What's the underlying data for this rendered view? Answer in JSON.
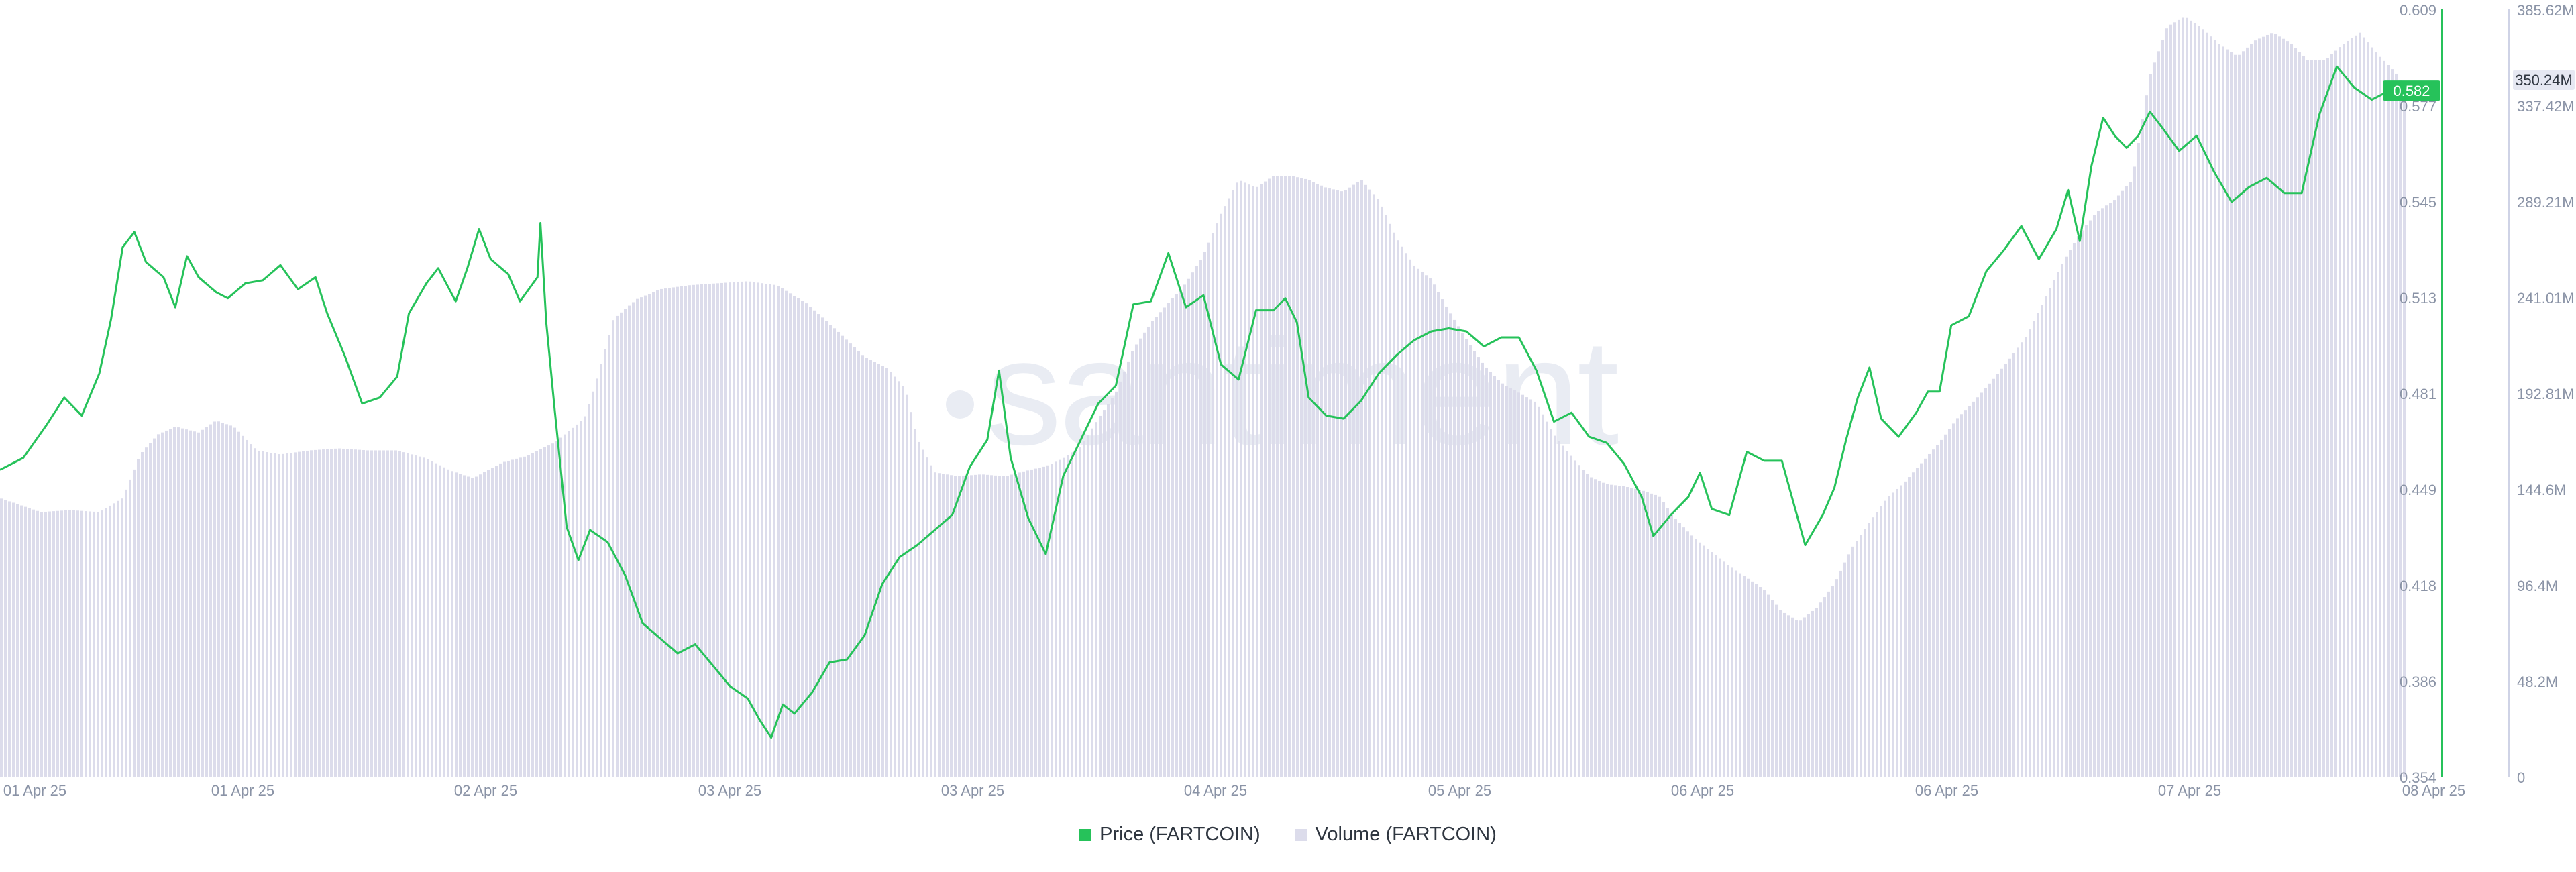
{
  "watermark": "santiment",
  "legend": [
    {
      "label": "Price (FARTCOIN)",
      "color": "#26c25a"
    },
    {
      "label": "Volume (FARTCOIN)",
      "color": "#dcdceb"
    }
  ],
  "chart_data": {
    "type": "line",
    "x_ticks": [
      "01 Apr 25",
      "01 Apr 25",
      "02 Apr 25",
      "03 Apr 25",
      "03 Apr 25",
      "04 Apr 25",
      "05 Apr 25",
      "06 Apr 25",
      "06 Apr 25",
      "07 Apr 25",
      "08 Apr 25"
    ],
    "price_axis": {
      "ticks": [
        "0.609",
        "0.577",
        "0.545",
        "0.513",
        "0.481",
        "0.449",
        "0.418",
        "0.386",
        "0.354"
      ],
      "range": [
        0.354,
        0.609
      ],
      "current_label": "0.582",
      "current_color": "#26c25a"
    },
    "volume_axis": {
      "ticks": [
        "385.62M",
        "337.42M",
        "289.21M",
        "241.01M",
        "192.81M",
        "144.6M",
        "96.4M",
        "48.2M",
        "0"
      ],
      "range_millions": [
        0,
        385.62
      ],
      "current_label": "350.24M"
    },
    "series": [
      {
        "name": "Price (FARTCOIN)",
        "kind": "line",
        "color": "#26c25a",
        "points": [
          [
            0,
            0.456
          ],
          [
            0.4,
            0.46
          ],
          [
            0.8,
            0.471
          ],
          [
            1.1,
            0.48
          ],
          [
            1.4,
            0.474
          ],
          [
            1.7,
            0.488
          ],
          [
            1.9,
            0.506
          ],
          [
            2.1,
            0.53
          ],
          [
            2.3,
            0.535
          ],
          [
            2.5,
            0.525
          ],
          [
            2.8,
            0.52
          ],
          [
            3.0,
            0.51
          ],
          [
            3.2,
            0.527
          ],
          [
            3.4,
            0.52
          ],
          [
            3.7,
            0.515
          ],
          [
            3.9,
            0.513
          ],
          [
            4.2,
            0.518
          ],
          [
            4.5,
            0.519
          ],
          [
            4.8,
            0.524
          ],
          [
            5.1,
            0.516
          ],
          [
            5.4,
            0.52
          ],
          [
            5.6,
            0.508
          ],
          [
            5.9,
            0.494
          ],
          [
            6.2,
            0.478
          ],
          [
            6.5,
            0.48
          ],
          [
            6.8,
            0.487
          ],
          [
            7.0,
            0.508
          ],
          [
            7.3,
            0.518
          ],
          [
            7.5,
            0.523
          ],
          [
            7.8,
            0.512
          ],
          [
            8.0,
            0.523
          ],
          [
            8.2,
            0.536
          ],
          [
            8.4,
            0.526
          ],
          [
            8.7,
            0.521
          ],
          [
            8.9,
            0.512
          ],
          [
            9.2,
            0.52
          ],
          [
            9.25,
            0.538
          ],
          [
            9.35,
            0.505
          ],
          [
            9.5,
            0.475
          ],
          [
            9.7,
            0.437
          ],
          [
            9.9,
            0.426
          ],
          [
            10.1,
            0.436
          ],
          [
            10.4,
            0.432
          ],
          [
            10.7,
            0.421
          ],
          [
            11.0,
            0.405
          ],
          [
            11.3,
            0.4
          ],
          [
            11.6,
            0.395
          ],
          [
            11.9,
            0.398
          ],
          [
            12.2,
            0.391
          ],
          [
            12.5,
            0.384
          ],
          [
            12.8,
            0.38
          ],
          [
            13.0,
            0.373
          ],
          [
            13.2,
            0.367
          ],
          [
            13.4,
            0.378
          ],
          [
            13.6,
            0.375
          ],
          [
            13.9,
            0.382
          ],
          [
            14.2,
            0.392
          ],
          [
            14.5,
            0.393
          ],
          [
            14.8,
            0.401
          ],
          [
            15.1,
            0.418
          ],
          [
            15.4,
            0.427
          ],
          [
            15.7,
            0.431
          ],
          [
            16.0,
            0.436
          ],
          [
            16.3,
            0.441
          ],
          [
            16.6,
            0.457
          ],
          [
            16.9,
            0.466
          ],
          [
            17.1,
            0.489
          ],
          [
            17.3,
            0.46
          ],
          [
            17.6,
            0.44
          ],
          [
            17.9,
            0.428
          ],
          [
            18.2,
            0.454
          ],
          [
            18.5,
            0.466
          ],
          [
            18.8,
            0.478
          ],
          [
            19.1,
            0.484
          ],
          [
            19.4,
            0.511
          ],
          [
            19.7,
            0.512
          ],
          [
            20.0,
            0.528
          ],
          [
            20.3,
            0.51
          ],
          [
            20.6,
            0.514
          ],
          [
            20.9,
            0.491
          ],
          [
            21.2,
            0.486
          ],
          [
            21.5,
            0.509
          ],
          [
            21.8,
            0.509
          ],
          [
            22.0,
            0.513
          ],
          [
            22.2,
            0.505
          ],
          [
            22.4,
            0.48
          ],
          [
            22.7,
            0.474
          ],
          [
            23.0,
            0.473
          ],
          [
            23.3,
            0.479
          ],
          [
            23.6,
            0.488
          ],
          [
            23.9,
            0.494
          ],
          [
            24.2,
            0.499
          ],
          [
            24.5,
            0.502
          ],
          [
            24.8,
            0.503
          ],
          [
            25.1,
            0.502
          ],
          [
            25.4,
            0.497
          ],
          [
            25.7,
            0.5
          ],
          [
            26.0,
            0.5
          ],
          [
            26.3,
            0.489
          ],
          [
            26.6,
            0.472
          ],
          [
            26.9,
            0.475
          ],
          [
            27.2,
            0.467
          ],
          [
            27.5,
            0.465
          ],
          [
            27.8,
            0.458
          ],
          [
            28.1,
            0.447
          ],
          [
            28.3,
            0.434
          ],
          [
            28.6,
            0.441
          ],
          [
            28.9,
            0.447
          ],
          [
            29.1,
            0.455
          ],
          [
            29.3,
            0.443
          ],
          [
            29.6,
            0.441
          ],
          [
            29.9,
            0.462
          ],
          [
            30.2,
            0.459
          ],
          [
            30.5,
            0.459
          ],
          [
            30.7,
            0.445
          ],
          [
            30.9,
            0.431
          ],
          [
            31.2,
            0.441
          ],
          [
            31.4,
            0.45
          ],
          [
            31.6,
            0.466
          ],
          [
            31.8,
            0.48
          ],
          [
            32.0,
            0.49
          ],
          [
            32.2,
            0.473
          ],
          [
            32.5,
            0.467
          ],
          [
            32.8,
            0.475
          ],
          [
            33.0,
            0.482
          ],
          [
            33.2,
            0.482
          ],
          [
            33.4,
            0.504
          ],
          [
            33.7,
            0.507
          ],
          [
            34.0,
            0.522
          ],
          [
            34.3,
            0.529
          ],
          [
            34.6,
            0.537
          ],
          [
            34.9,
            0.526
          ],
          [
            35.2,
            0.536
          ],
          [
            35.4,
            0.549
          ],
          [
            35.6,
            0.532
          ],
          [
            35.8,
            0.557
          ],
          [
            36.0,
            0.573
          ],
          [
            36.2,
            0.567
          ],
          [
            36.4,
            0.563
          ],
          [
            36.6,
            0.567
          ],
          [
            36.8,
            0.575
          ],
          [
            37.0,
            0.57
          ],
          [
            37.3,
            0.562
          ],
          [
            37.6,
            0.567
          ],
          [
            37.9,
            0.555
          ],
          [
            38.2,
            0.545
          ],
          [
            38.5,
            0.55
          ],
          [
            38.8,
            0.553
          ],
          [
            39.1,
            0.548
          ],
          [
            39.4,
            0.548
          ],
          [
            39.7,
            0.574
          ],
          [
            40.0,
            0.59
          ],
          [
            40.3,
            0.583
          ],
          [
            40.6,
            0.579
          ],
          [
            40.9,
            0.582
          ]
        ]
      },
      {
        "name": "Volume (FARTCOIN)",
        "kind": "bar",
        "color": "#dcdceb",
        "points": [
          [
            0,
            140
          ],
          [
            0.7,
            133
          ],
          [
            1.2,
            134
          ],
          [
            1.7,
            133
          ],
          [
            2.1,
            140
          ],
          [
            2.4,
            162
          ],
          [
            2.7,
            172
          ],
          [
            3.0,
            176
          ],
          [
            3.4,
            173
          ],
          [
            3.7,
            179
          ],
          [
            4.0,
            176
          ],
          [
            4.4,
            164
          ],
          [
            4.8,
            162
          ],
          [
            5.3,
            164
          ],
          [
            5.8,
            165
          ],
          [
            6.3,
            164
          ],
          [
            6.8,
            164
          ],
          [
            7.3,
            160
          ],
          [
            7.7,
            154
          ],
          [
            8.1,
            150
          ],
          [
            8.6,
            158
          ],
          [
            9.0,
            161
          ],
          [
            9.5,
            168
          ],
          [
            10.0,
            180
          ],
          [
            10.2,
            198
          ],
          [
            10.5,
            230
          ],
          [
            10.9,
            240
          ],
          [
            11.3,
            245
          ],
          [
            11.8,
            247
          ],
          [
            12.3,
            248
          ],
          [
            12.8,
            249
          ],
          [
            13.3,
            247
          ],
          [
            13.8,
            238
          ],
          [
            14.3,
            225
          ],
          [
            14.8,
            211
          ],
          [
            15.2,
            205
          ],
          [
            15.5,
            195
          ],
          [
            15.7,
            170
          ],
          [
            16.0,
            153
          ],
          [
            16.4,
            151
          ],
          [
            16.8,
            152
          ],
          [
            17.2,
            151
          ],
          [
            17.6,
            154
          ],
          [
            17.9,
            156
          ],
          [
            18.2,
            160
          ],
          [
            18.5,
            166
          ],
          [
            18.8,
            180
          ],
          [
            19.1,
            193
          ],
          [
            19.4,
            215
          ],
          [
            19.7,
            228
          ],
          [
            20.0,
            238
          ],
          [
            20.3,
            248
          ],
          [
            20.6,
            262
          ],
          [
            20.9,
            283
          ],
          [
            21.2,
            300
          ],
          [
            21.5,
            296
          ],
          [
            21.8,
            302
          ],
          [
            22.1,
            302
          ],
          [
            22.4,
            300
          ],
          [
            22.7,
            296
          ],
          [
            23.0,
            294
          ],
          [
            23.3,
            300
          ],
          [
            23.6,
            290
          ],
          [
            23.9,
            271
          ],
          [
            24.2,
            257
          ],
          [
            24.5,
            250
          ],
          [
            24.8,
            234
          ],
          [
            25.1,
            220
          ],
          [
            25.4,
            207
          ],
          [
            25.7,
            198
          ],
          [
            26.0,
            193
          ],
          [
            26.3,
            188
          ],
          [
            26.6,
            172
          ],
          [
            26.9,
            161
          ],
          [
            27.2,
            151
          ],
          [
            27.5,
            147
          ],
          [
            27.8,
            146
          ],
          [
            28.1,
            144
          ],
          [
            28.4,
            141
          ],
          [
            28.7,
            129
          ],
          [
            29.0,
            120
          ],
          [
            29.3,
            113
          ],
          [
            29.6,
            106
          ],
          [
            29.9,
            100
          ],
          [
            30.2,
            94
          ],
          [
            30.5,
            83
          ],
          [
            30.8,
            78
          ],
          [
            31.1,
            85
          ],
          [
            31.4,
            97
          ],
          [
            31.7,
            115
          ],
          [
            32.0,
            128
          ],
          [
            32.3,
            140
          ],
          [
            32.6,
            148
          ],
          [
            32.9,
            158
          ],
          [
            33.2,
            168
          ],
          [
            33.5,
            180
          ],
          [
            33.8,
            189
          ],
          [
            34.1,
            199
          ],
          [
            34.4,
            210
          ],
          [
            34.7,
            222
          ],
          [
            35.0,
            240
          ],
          [
            35.3,
            258
          ],
          [
            35.6,
            273
          ],
          [
            35.9,
            284
          ],
          [
            36.2,
            290
          ],
          [
            36.5,
            300
          ],
          [
            36.8,
            352
          ],
          [
            37.1,
            377
          ],
          [
            37.4,
            382
          ],
          [
            37.7,
            376
          ],
          [
            38.0,
            368
          ],
          [
            38.3,
            362
          ],
          [
            38.6,
            370
          ],
          [
            38.9,
            374
          ],
          [
            39.2,
            369
          ],
          [
            39.5,
            360
          ],
          [
            39.8,
            360
          ],
          [
            40.1,
            368
          ],
          [
            40.4,
            374
          ],
          [
            40.7,
            363
          ],
          [
            41.0,
            354
          ],
          [
            41.2,
            345
          ]
        ]
      }
    ],
    "x_range": [
      0,
      41.2
    ],
    "grid": false,
    "legend_position": "bottom"
  }
}
